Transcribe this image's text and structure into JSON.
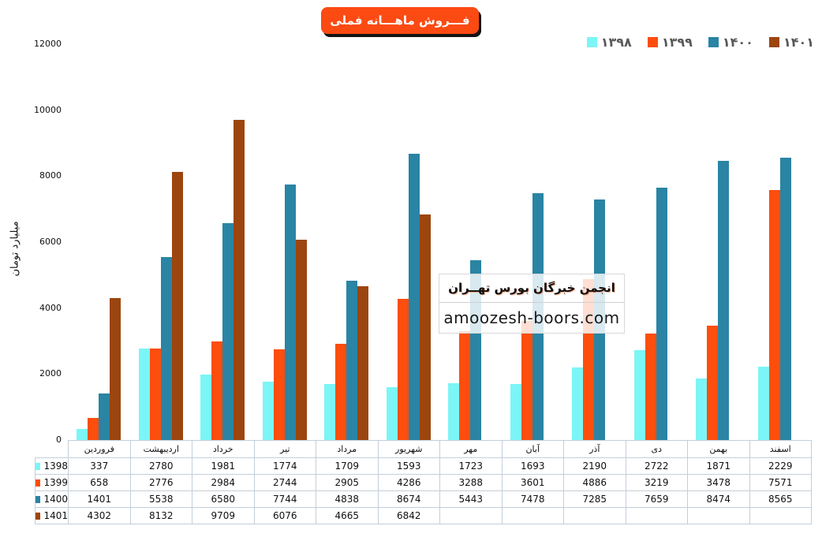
{
  "title": "فـــروش ماهـــانه فملی",
  "colors": {
    "banner_bg": "#FC4A13",
    "banner_shadow": "#141414",
    "legend_text": "#595959",
    "table_border": "#c3cfda"
  },
  "y_axis": {
    "label": "میلیارد تومان",
    "ticks": [
      0,
      2000,
      4000,
      6000,
      8000,
      10000,
      12000
    ]
  },
  "watermark": {
    "line1": "انجمن خبرگان بورس تهــران",
    "line2": "amoozesh-boors.com"
  },
  "chart_data": {
    "type": "bar",
    "title": "فـــروش ماهـــانه فملی",
    "xlabel": "",
    "ylabel": "میلیارد تومان",
    "ylim": [
      0,
      12000
    ],
    "grid": false,
    "legend_position": "top-right",
    "data_table": true,
    "categories": [
      "فروردین",
      "اردیبهشت",
      "خرداد",
      "تیر",
      "مرداد",
      "شهریور",
      "مهر",
      "آبان",
      "آذر",
      "دی",
      "بهمن",
      "اسفند"
    ],
    "series": [
      {
        "name": "1398",
        "legend_label": "۱۳۹۸",
        "color": "#7CF5F7",
        "values": [
          337,
          2780,
          1981,
          1774,
          1709,
          1593,
          1723,
          1693,
          2190,
          2722,
          1871,
          2229
        ]
      },
      {
        "name": "1399",
        "legend_label": "۱۳۹۹",
        "color": "#FD4E0D",
        "values": [
          658,
          2776,
          2984,
          2744,
          2905,
          4286,
          3288,
          3601,
          4886,
          3219,
          3478,
          7571
        ]
      },
      {
        "name": "1400",
        "legend_label": "۱۴۰۰",
        "color": "#2A84A4",
        "values": [
          1401,
          5538,
          6580,
          7744,
          4838,
          8674,
          5443,
          7478,
          7285,
          7659,
          8474,
          8565
        ]
      },
      {
        "name": "1401",
        "legend_label": "۱۴۰۱",
        "color": "#9C450E",
        "values": [
          4302,
          8132,
          9709,
          6076,
          4665,
          6842,
          null,
          null,
          null,
          null,
          null,
          null
        ]
      }
    ]
  }
}
